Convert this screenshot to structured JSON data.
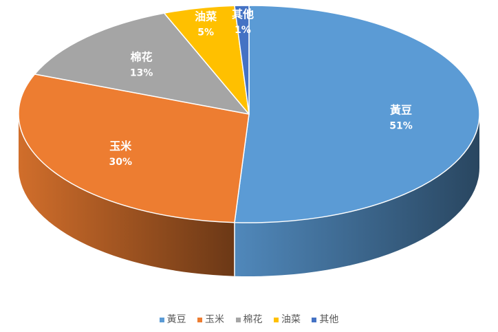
{
  "chart_data": {
    "type": "pie",
    "style": "3d",
    "title": "",
    "categories": [
      "黃豆",
      "玉米",
      "棉花",
      "油菜",
      "其他"
    ],
    "values": [
      51,
      30,
      13,
      5,
      1
    ],
    "value_labels": [
      "51%",
      "30%",
      "13%",
      "5%",
      "1%"
    ],
    "colors": [
      "#5B9BD5",
      "#ED7D31",
      "#A5A5A5",
      "#FFC000",
      "#4472C4"
    ],
    "legend_position": "bottom"
  }
}
